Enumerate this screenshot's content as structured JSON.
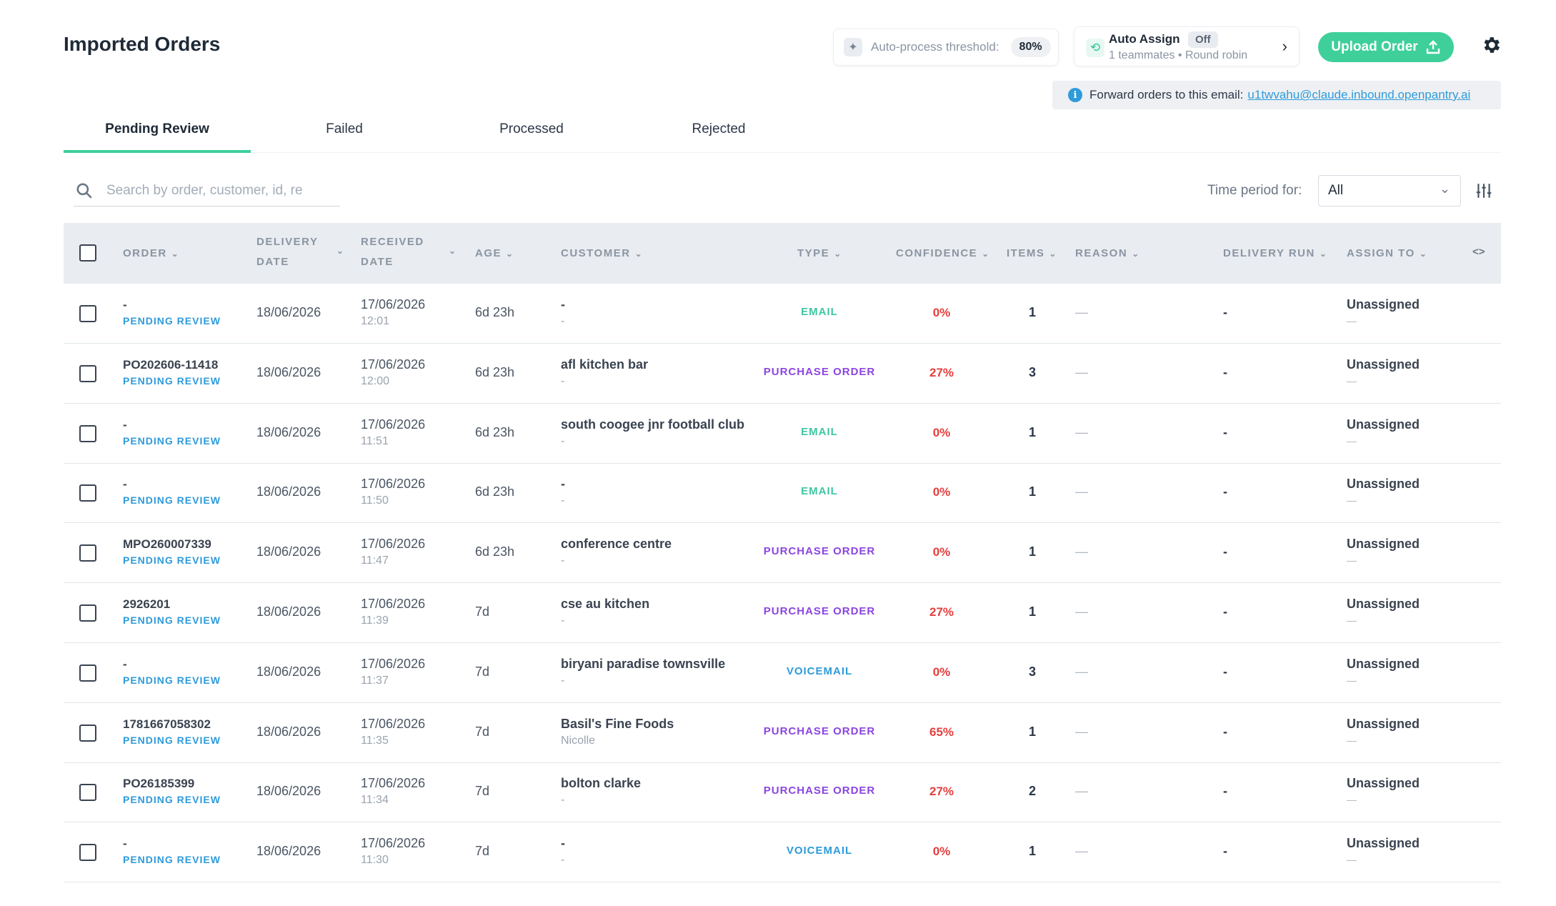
{
  "page": {
    "title": "Imported Orders"
  },
  "threshold": {
    "label": "Auto-process threshold:",
    "value": "80%"
  },
  "auto_assign": {
    "title": "Auto Assign",
    "status": "Off",
    "subtitle": "1 teammates • Round robin"
  },
  "upload": {
    "label": "Upload Order"
  },
  "forward": {
    "text": "Forward orders to this email:",
    "email": "u1twvahu@claude.inbound.openpantry.ai"
  },
  "tabs": [
    {
      "label": "Pending Review",
      "active": true
    },
    {
      "label": "Failed",
      "active": false
    },
    {
      "label": "Processed",
      "active": false
    },
    {
      "label": "Rejected",
      "active": false
    }
  ],
  "search": {
    "placeholder": "Search by order, customer, id, re",
    "value": ""
  },
  "time_period": {
    "label": "Time period for:",
    "value": "All"
  },
  "columns": {
    "order": "ORDER",
    "delivery_date_1": "DELIVERY",
    "delivery_date_2": "DATE",
    "received_date_1": "RECEIVED",
    "received_date_2": "DATE",
    "age": "AGE",
    "customer": "CUSTOMER",
    "type": "TYPE",
    "confidence": "CONFIDENCE",
    "items": "ITEMS",
    "reason": "REASON",
    "delivery_run": "DELIVERY RUN",
    "assign_to": "ASSIGN TO",
    "expand_icon": "<>"
  },
  "colors": {
    "accent": "#3ecf9b",
    "email": "#3ec6a3",
    "purchase_order": "#8b45e0",
    "voicemail": "#2f9bdb",
    "confidence": "#e53e3e",
    "pending": "#2f9bdb"
  },
  "rows": [
    {
      "order": "-",
      "status": "PENDING REVIEW",
      "delivery": "18/06/2026",
      "received_date": "17/06/2026",
      "received_time": "12:01",
      "age": "6d 23h",
      "customer": "-",
      "customer_sub": "-",
      "type": "EMAIL",
      "confidence": "0%",
      "items": "1",
      "reason": "—",
      "run": "-",
      "assign": "Unassigned",
      "assign_sub": "—"
    },
    {
      "order": "PO202606-11418",
      "status": "PENDING REVIEW",
      "delivery": "18/06/2026",
      "received_date": "17/06/2026",
      "received_time": "12:00",
      "age": "6d 23h",
      "customer": "afl kitchen bar",
      "customer_sub": "-",
      "type": "PURCHASE ORDER",
      "confidence": "27%",
      "items": "3",
      "reason": "—",
      "run": "-",
      "assign": "Unassigned",
      "assign_sub": "—"
    },
    {
      "order": "-",
      "status": "PENDING REVIEW",
      "delivery": "18/06/2026",
      "received_date": "17/06/2026",
      "received_time": "11:51",
      "age": "6d 23h",
      "customer": "south coogee jnr football club",
      "customer_sub": "-",
      "type": "EMAIL",
      "confidence": "0%",
      "items": "1",
      "reason": "—",
      "run": "-",
      "assign": "Unassigned",
      "assign_sub": "—"
    },
    {
      "order": "-",
      "status": "PENDING REVIEW",
      "delivery": "18/06/2026",
      "received_date": "17/06/2026",
      "received_time": "11:50",
      "age": "6d 23h",
      "customer": "-",
      "customer_sub": "-",
      "type": "EMAIL",
      "confidence": "0%",
      "items": "1",
      "reason": "—",
      "run": "-",
      "assign": "Unassigned",
      "assign_sub": "—"
    },
    {
      "order": "MPO260007339",
      "status": "PENDING REVIEW",
      "delivery": "18/06/2026",
      "received_date": "17/06/2026",
      "received_time": "11:47",
      "age": "6d 23h",
      "customer": "conference centre",
      "customer_sub": "-",
      "type": "PURCHASE ORDER",
      "confidence": "0%",
      "items": "1",
      "reason": "—",
      "run": "-",
      "assign": "Unassigned",
      "assign_sub": "—"
    },
    {
      "order": "2926201",
      "status": "PENDING REVIEW",
      "delivery": "18/06/2026",
      "received_date": "17/06/2026",
      "received_time": "11:39",
      "age": "7d",
      "customer": "cse au kitchen",
      "customer_sub": "-",
      "type": "PURCHASE ORDER",
      "confidence": "27%",
      "items": "1",
      "reason": "—",
      "run": "-",
      "assign": "Unassigned",
      "assign_sub": "—"
    },
    {
      "order": "-",
      "status": "PENDING REVIEW",
      "delivery": "18/06/2026",
      "received_date": "17/06/2026",
      "received_time": "11:37",
      "age": "7d",
      "customer": "biryani paradise townsville",
      "customer_sub": "-",
      "type": "VOICEMAIL",
      "confidence": "0%",
      "items": "3",
      "reason": "—",
      "run": "-",
      "assign": "Unassigned",
      "assign_sub": "—"
    },
    {
      "order": "1781667058302",
      "status": "PENDING REVIEW",
      "delivery": "18/06/2026",
      "received_date": "17/06/2026",
      "received_time": "11:35",
      "age": "7d",
      "customer": "Basil's Fine Foods",
      "customer_sub": "Nicolle",
      "type": "PURCHASE ORDER",
      "confidence": "65%",
      "items": "1",
      "reason": "—",
      "run": "-",
      "assign": "Unassigned",
      "assign_sub": "—"
    },
    {
      "order": "PO26185399",
      "status": "PENDING REVIEW",
      "delivery": "18/06/2026",
      "received_date": "17/06/2026",
      "received_time": "11:34",
      "age": "7d",
      "customer": "bolton clarke",
      "customer_sub": "-",
      "type": "PURCHASE ORDER",
      "confidence": "27%",
      "items": "2",
      "reason": "—",
      "run": "-",
      "assign": "Unassigned",
      "assign_sub": "—"
    },
    {
      "order": "-",
      "status": "PENDING REVIEW",
      "delivery": "18/06/2026",
      "received_date": "17/06/2026",
      "received_time": "11:30",
      "age": "7d",
      "customer": "-",
      "customer_sub": "-",
      "type": "VOICEMAIL",
      "confidence": "0%",
      "items": "1",
      "reason": "—",
      "run": "-",
      "assign": "Unassigned",
      "assign_sub": "—"
    }
  ]
}
